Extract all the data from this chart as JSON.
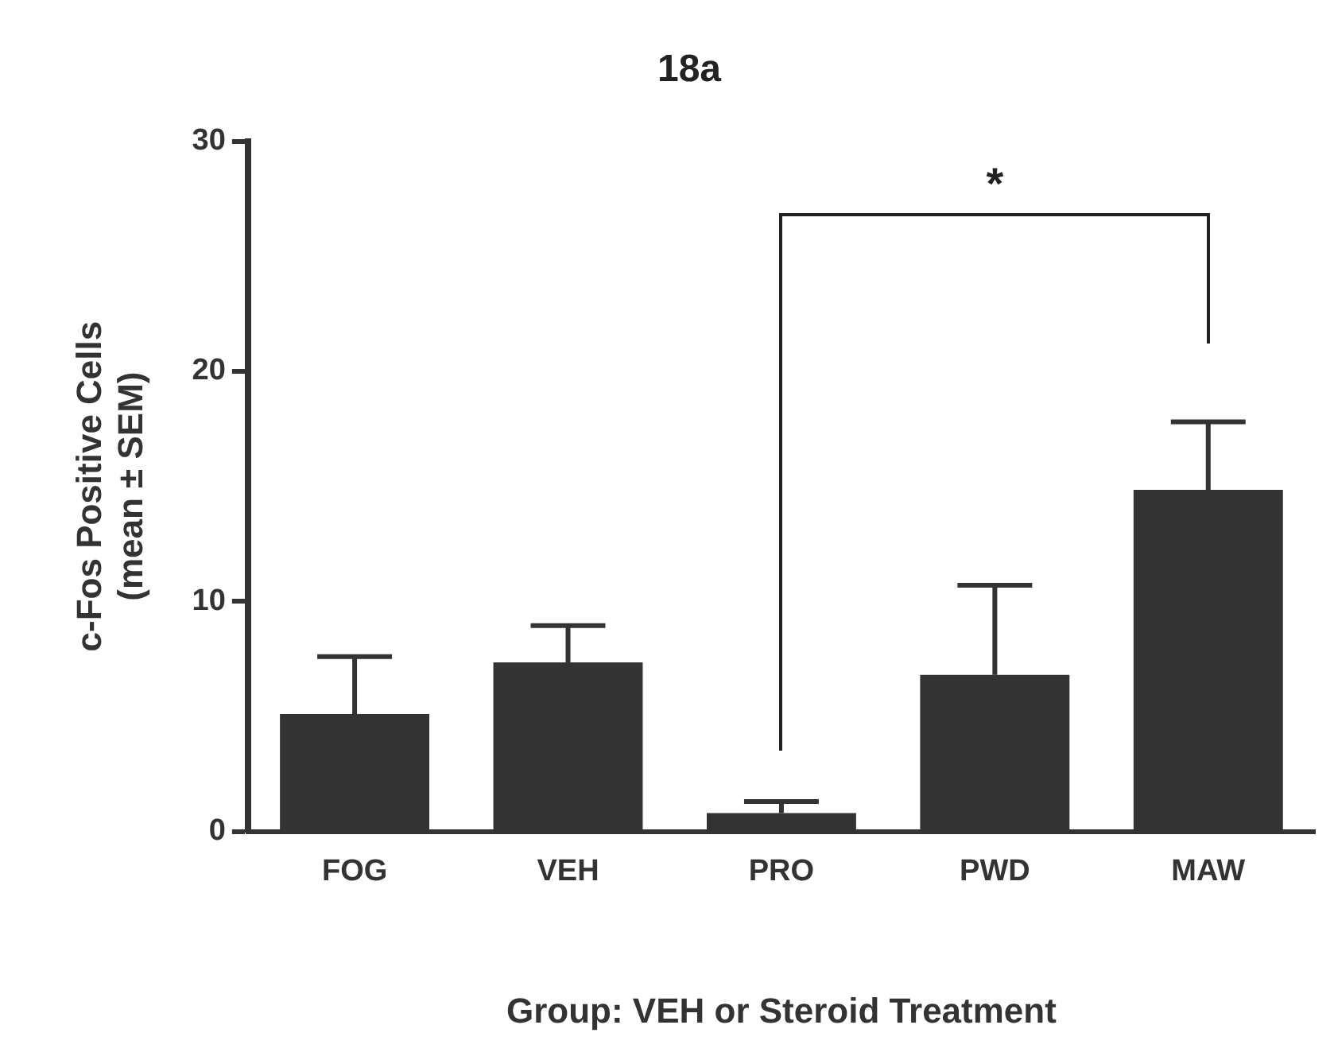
{
  "chart_data": {
    "type": "bar",
    "title": "18a",
    "xlabel": "Group: VEH or Steroid Treatment",
    "ylabel": "c-Fos Positive Cells\n(mean ± SEM)",
    "categories": [
      "FOG",
      "VEH",
      "PRO",
      "PWD",
      "MAW"
    ],
    "values": [
      5.1,
      7.35,
      0.8,
      6.8,
      14.85
    ],
    "errors": [
      [
        5.1,
        7.6
      ],
      [
        7.35,
        8.95
      ],
      [
        0.8,
        1.3
      ],
      [
        6.8,
        10.7
      ],
      [
        14.85,
        17.8
      ]
    ],
    "color": "#333333",
    "ylim": [
      0,
      30
    ],
    "yticks": [
      0,
      10,
      20,
      30
    ],
    "grid": false,
    "legend": false,
    "annotations": [
      "*"
    ]
  }
}
